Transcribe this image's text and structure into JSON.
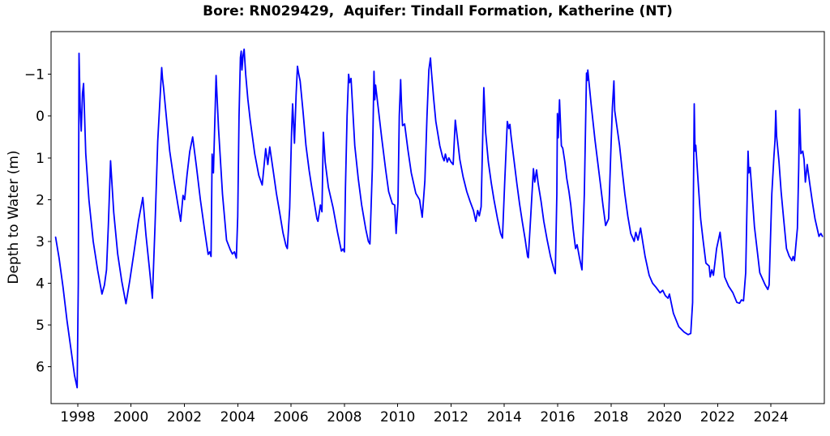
{
  "window": {
    "background": "#ffffff"
  },
  "chart_data": {
    "type": "line",
    "title": "Bore: RN029429,  Aquifer: Tindall Formation, Katherine (NT)",
    "xlabel": "",
    "ylabel": "Depth to Water (m)",
    "series_name": "depth-to-water",
    "line_color": "#0000ff",
    "axis_color": "#000000",
    "grid": false,
    "legend": "none",
    "x_axis": {
      "min": 1997,
      "max": 2026,
      "ticks": [
        1998,
        2000,
        2002,
        2004,
        2006,
        2008,
        2010,
        2012,
        2014,
        2016,
        2018,
        2020,
        2022,
        2024
      ],
      "tick_labels": [
        "1998",
        "2000",
        "2002",
        "2004",
        "2006",
        "2008",
        "2010",
        "2012",
        "2014",
        "2016",
        "2018",
        "2020",
        "2022",
        "2024"
      ]
    },
    "y_axis": {
      "min": -2.02,
      "max": 6.88,
      "inverted": true,
      "ticks": [
        -1,
        0,
        1,
        2,
        3,
        4,
        5,
        6
      ],
      "tick_labels": [
        "−1",
        "0",
        "1",
        "2",
        "3",
        "4",
        "5",
        "6"
      ]
    },
    "points": [
      [
        1997.17,
        2.9
      ],
      [
        1997.3,
        3.4
      ],
      [
        1997.45,
        4.1
      ],
      [
        1997.6,
        4.9
      ],
      [
        1997.75,
        5.6
      ],
      [
        1997.88,
        6.2
      ],
      [
        1997.98,
        6.5
      ],
      [
        1998.02,
        4.0
      ],
      [
        1998.05,
        -1.5
      ],
      [
        1998.09,
        -0.2
      ],
      [
        1998.13,
        0.36
      ],
      [
        1998.18,
        -0.55
      ],
      [
        1998.22,
        -0.78
      ],
      [
        1998.3,
        0.9
      ],
      [
        1998.42,
        2.0
      ],
      [
        1998.58,
        3.0
      ],
      [
        1998.75,
        3.7
      ],
      [
        1998.91,
        4.26
      ],
      [
        1999.0,
        4.05
      ],
      [
        1999.08,
        3.68
      ],
      [
        1999.15,
        2.6
      ],
      [
        1999.23,
        1.07
      ],
      [
        1999.35,
        2.3
      ],
      [
        1999.5,
        3.3
      ],
      [
        1999.65,
        3.95
      ],
      [
        1999.81,
        4.49
      ],
      [
        1999.95,
        3.95
      ],
      [
        2000.1,
        3.3
      ],
      [
        2000.28,
        2.5
      ],
      [
        2000.44,
        1.95
      ],
      [
        2000.56,
        2.85
      ],
      [
        2000.68,
        3.6
      ],
      [
        2000.8,
        4.36
      ],
      [
        2000.9,
        2.6
      ],
      [
        2001.0,
        0.6
      ],
      [
        2001.15,
        -1.16
      ],
      [
        2001.18,
        -0.9
      ],
      [
        2001.22,
        -0.68
      ],
      [
        2001.35,
        0.2
      ],
      [
        2001.45,
        0.84
      ],
      [
        2001.6,
        1.5
      ],
      [
        2001.75,
        2.1
      ],
      [
        2001.86,
        2.52
      ],
      [
        2001.95,
        1.9
      ],
      [
        2002.01,
        2.0
      ],
      [
        2002.1,
        1.4
      ],
      [
        2002.2,
        0.85
      ],
      [
        2002.31,
        0.5
      ],
      [
        2002.45,
        1.2
      ],
      [
        2002.6,
        2.0
      ],
      [
        2002.75,
        2.7
      ],
      [
        2002.89,
        3.31
      ],
      [
        2002.95,
        3.25
      ],
      [
        2003.0,
        3.36
      ],
      [
        2003.04,
        0.91
      ],
      [
        2003.09,
        1.36
      ],
      [
        2003.19,
        -0.97
      ],
      [
        2003.28,
        0.3
      ],
      [
        2003.43,
        1.87
      ],
      [
        2003.58,
        2.97
      ],
      [
        2003.72,
        3.2
      ],
      [
        2003.8,
        3.3
      ],
      [
        2003.88,
        3.25
      ],
      [
        2003.95,
        3.4
      ],
      [
        2004.0,
        2.4
      ],
      [
        2004.05,
        0.0
      ],
      [
        2004.1,
        -1.4
      ],
      [
        2004.13,
        -1.55
      ],
      [
        2004.16,
        -1.1
      ],
      [
        2004.2,
        -1.45
      ],
      [
        2004.24,
        -1.6
      ],
      [
        2004.3,
        -1.0
      ],
      [
        2004.38,
        -0.4
      ],
      [
        2004.47,
        0.1
      ],
      [
        2004.64,
        0.91
      ],
      [
        2004.79,
        1.42
      ],
      [
        2004.92,
        1.65
      ],
      [
        2005.05,
        0.78
      ],
      [
        2005.13,
        1.16
      ],
      [
        2005.2,
        0.74
      ],
      [
        2005.33,
        1.3
      ],
      [
        2005.45,
        1.85
      ],
      [
        2005.56,
        2.26
      ],
      [
        2005.7,
        2.8
      ],
      [
        2005.81,
        3.1
      ],
      [
        2005.86,
        3.17
      ],
      [
        2005.95,
        2.2
      ],
      [
        2006.02,
        0.4
      ],
      [
        2006.06,
        -0.29
      ],
      [
        2006.13,
        0.65
      ],
      [
        2006.19,
        -0.5
      ],
      [
        2006.24,
        -1.19
      ],
      [
        2006.29,
        -1.0
      ],
      [
        2006.34,
        -0.84
      ],
      [
        2006.45,
        -0.1
      ],
      [
        2006.56,
        0.71
      ],
      [
        2006.68,
        1.3
      ],
      [
        2006.77,
        1.68
      ],
      [
        2006.88,
        2.1
      ],
      [
        2006.97,
        2.46
      ],
      [
        2007.01,
        2.52
      ],
      [
        2007.1,
        2.13
      ],
      [
        2007.16,
        2.29
      ],
      [
        2007.21,
        0.39
      ],
      [
        2007.28,
        1.1
      ],
      [
        2007.4,
        1.7
      ],
      [
        2007.58,
        2.2
      ],
      [
        2007.75,
        2.8
      ],
      [
        2007.89,
        3.23
      ],
      [
        2007.95,
        3.18
      ],
      [
        2008.0,
        3.25
      ],
      [
        2008.04,
        1.71
      ],
      [
        2008.1,
        0.0
      ],
      [
        2008.16,
        -1.0
      ],
      [
        2008.2,
        -0.8
      ],
      [
        2008.25,
        -0.9
      ],
      [
        2008.39,
        0.71
      ],
      [
        2008.52,
        1.5
      ],
      [
        2008.65,
        2.13
      ],
      [
        2008.8,
        2.7
      ],
      [
        2008.9,
        3.0
      ],
      [
        2008.96,
        3.06
      ],
      [
        2009.05,
        1.23
      ],
      [
        2009.11,
        -1.07
      ],
      [
        2009.14,
        -0.39
      ],
      [
        2009.17,
        -0.74
      ],
      [
        2009.25,
        -0.3
      ],
      [
        2009.4,
        0.52
      ],
      [
        2009.55,
        1.3
      ],
      [
        2009.66,
        1.81
      ],
      [
        2009.8,
        2.1
      ],
      [
        2009.89,
        2.13
      ],
      [
        2009.94,
        2.81
      ],
      [
        2010.01,
        2.07
      ],
      [
        2010.06,
        0.0
      ],
      [
        2010.11,
        -0.87
      ],
      [
        2010.14,
        -0.3
      ],
      [
        2010.18,
        0.23
      ],
      [
        2010.26,
        0.19
      ],
      [
        2010.38,
        0.8
      ],
      [
        2010.51,
        1.36
      ],
      [
        2010.68,
        1.85
      ],
      [
        2010.82,
        2.0
      ],
      [
        2010.92,
        2.42
      ],
      [
        2011.02,
        1.55
      ],
      [
        2011.1,
        0.0
      ],
      [
        2011.17,
        -1.1
      ],
      [
        2011.23,
        -1.39
      ],
      [
        2011.26,
        -1.1
      ],
      [
        2011.28,
        -0.94
      ],
      [
        2011.35,
        -0.4
      ],
      [
        2011.43,
        0.13
      ],
      [
        2011.58,
        0.71
      ],
      [
        2011.68,
        0.97
      ],
      [
        2011.74,
        1.07
      ],
      [
        2011.79,
        0.91
      ],
      [
        2011.86,
        1.1
      ],
      [
        2011.92,
        1.0
      ],
      [
        2012.0,
        1.1
      ],
      [
        2012.08,
        1.16
      ],
      [
        2012.16,
        0.1
      ],
      [
        2012.25,
        0.6
      ],
      [
        2012.33,
        1.04
      ],
      [
        2012.45,
        1.45
      ],
      [
        2012.59,
        1.81
      ],
      [
        2012.72,
        2.05
      ],
      [
        2012.84,
        2.26
      ],
      [
        2012.93,
        2.52
      ],
      [
        2013.0,
        2.26
      ],
      [
        2013.06,
        2.39
      ],
      [
        2013.13,
        2.17
      ],
      [
        2013.23,
        -0.68
      ],
      [
        2013.3,
        0.4
      ],
      [
        2013.4,
        1.1
      ],
      [
        2013.51,
        1.6
      ],
      [
        2013.61,
        2.0
      ],
      [
        2013.74,
        2.45
      ],
      [
        2013.86,
        2.81
      ],
      [
        2013.93,
        2.92
      ],
      [
        2014.01,
        1.62
      ],
      [
        2014.11,
        0.13
      ],
      [
        2014.17,
        0.3
      ],
      [
        2014.21,
        0.2
      ],
      [
        2014.25,
        0.48
      ],
      [
        2014.36,
        1.05
      ],
      [
        2014.47,
        1.62
      ],
      [
        2014.57,
        2.1
      ],
      [
        2014.67,
        2.52
      ],
      [
        2014.78,
        2.95
      ],
      [
        2014.87,
        3.36
      ],
      [
        2014.9,
        3.39
      ],
      [
        2014.99,
        2.39
      ],
      [
        2015.09,
        1.26
      ],
      [
        2015.14,
        1.58
      ],
      [
        2015.21,
        1.29
      ],
      [
        2015.27,
        1.62
      ],
      [
        2015.38,
        2.05
      ],
      [
        2015.48,
        2.52
      ],
      [
        2015.6,
        2.95
      ],
      [
        2015.73,
        3.36
      ],
      [
        2015.88,
        3.72
      ],
      [
        2015.91,
        3.77
      ],
      [
        2015.97,
        1.87
      ],
      [
        2015.99,
        -0.06
      ],
      [
        2016.02,
        0.52
      ],
      [
        2016.07,
        -0.39
      ],
      [
        2016.14,
        0.71
      ],
      [
        2016.19,
        0.77
      ],
      [
        2016.27,
        1.1
      ],
      [
        2016.34,
        1.49
      ],
      [
        2016.42,
        1.8
      ],
      [
        2016.49,
        2.13
      ],
      [
        2016.58,
        2.7
      ],
      [
        2016.67,
        3.17
      ],
      [
        2016.73,
        3.08
      ],
      [
        2016.82,
        3.4
      ],
      [
        2016.91,
        3.68
      ],
      [
        2017.0,
        1.87
      ],
      [
        2017.08,
        -1.03
      ],
      [
        2017.11,
        -0.85
      ],
      [
        2017.13,
        -1.1
      ],
      [
        2017.25,
        -0.3
      ],
      [
        2017.4,
        0.58
      ],
      [
        2017.5,
        1.1
      ],
      [
        2017.6,
        1.62
      ],
      [
        2017.7,
        2.15
      ],
      [
        2017.8,
        2.62
      ],
      [
        2017.91,
        2.46
      ],
      [
        2017.99,
        0.91
      ],
      [
        2018.05,
        -0.2
      ],
      [
        2018.11,
        -0.84
      ],
      [
        2018.14,
        -0.13
      ],
      [
        2018.22,
        0.25
      ],
      [
        2018.32,
        0.71
      ],
      [
        2018.42,
        1.3
      ],
      [
        2018.52,
        1.87
      ],
      [
        2018.63,
        2.4
      ],
      [
        2018.74,
        2.81
      ],
      [
        2018.87,
        3.0
      ],
      [
        2018.93,
        2.78
      ],
      [
        2019.01,
        2.97
      ],
      [
        2019.11,
        2.68
      ],
      [
        2019.2,
        3.05
      ],
      [
        2019.28,
        3.36
      ],
      [
        2019.43,
        3.81
      ],
      [
        2019.56,
        4.0
      ],
      [
        2019.69,
        4.1
      ],
      [
        2019.84,
        4.23
      ],
      [
        2019.94,
        4.17
      ],
      [
        2020.04,
        4.3
      ],
      [
        2020.14,
        4.36
      ],
      [
        2020.19,
        4.26
      ],
      [
        2020.34,
        4.72
      ],
      [
        2020.54,
        5.04
      ],
      [
        2020.74,
        5.17
      ],
      [
        2020.89,
        5.23
      ],
      [
        2020.99,
        5.2
      ],
      [
        2021.06,
        4.46
      ],
      [
        2021.09,
        1.87
      ],
      [
        2021.12,
        -0.29
      ],
      [
        2021.15,
        0.84
      ],
      [
        2021.18,
        0.7
      ],
      [
        2021.27,
        1.6
      ],
      [
        2021.36,
        2.46
      ],
      [
        2021.46,
        3.0
      ],
      [
        2021.56,
        3.52
      ],
      [
        2021.68,
        3.59
      ],
      [
        2021.72,
        3.85
      ],
      [
        2021.78,
        3.68
      ],
      [
        2021.84,
        3.81
      ],
      [
        2021.96,
        3.17
      ],
      [
        2022.09,
        2.78
      ],
      [
        2022.18,
        3.3
      ],
      [
        2022.26,
        3.85
      ],
      [
        2022.41,
        4.07
      ],
      [
        2022.57,
        4.23
      ],
      [
        2022.72,
        4.46
      ],
      [
        2022.82,
        4.48
      ],
      [
        2022.89,
        4.4
      ],
      [
        2022.97,
        4.42
      ],
      [
        2023.05,
        3.75
      ],
      [
        2023.14,
        0.84
      ],
      [
        2023.17,
        1.36
      ],
      [
        2023.22,
        1.23
      ],
      [
        2023.38,
        2.65
      ],
      [
        2023.48,
        3.2
      ],
      [
        2023.58,
        3.75
      ],
      [
        2023.78,
        4.04
      ],
      [
        2023.88,
        4.15
      ],
      [
        2023.93,
        4.04
      ],
      [
        2024.03,
        1.87
      ],
      [
        2024.11,
        0.97
      ],
      [
        2024.15,
        0.6
      ],
      [
        2024.18,
        -0.13
      ],
      [
        2024.21,
        0.48
      ],
      [
        2024.3,
        1.1
      ],
      [
        2024.38,
        1.81
      ],
      [
        2024.48,
        2.5
      ],
      [
        2024.58,
        3.17
      ],
      [
        2024.68,
        3.35
      ],
      [
        2024.78,
        3.46
      ],
      [
        2024.83,
        3.36
      ],
      [
        2024.88,
        3.46
      ],
      [
        2024.99,
        2.68
      ],
      [
        2025.04,
        1.23
      ],
      [
        2025.07,
        -0.16
      ],
      [
        2025.12,
        0.9
      ],
      [
        2025.19,
        0.84
      ],
      [
        2025.24,
        1.04
      ],
      [
        2025.29,
        1.58
      ],
      [
        2025.36,
        1.16
      ],
      [
        2025.45,
        1.6
      ],
      [
        2025.55,
        2.05
      ],
      [
        2025.65,
        2.46
      ],
      [
        2025.8,
        2.88
      ],
      [
        2025.87,
        2.81
      ],
      [
        2025.93,
        2.88
      ]
    ]
  }
}
